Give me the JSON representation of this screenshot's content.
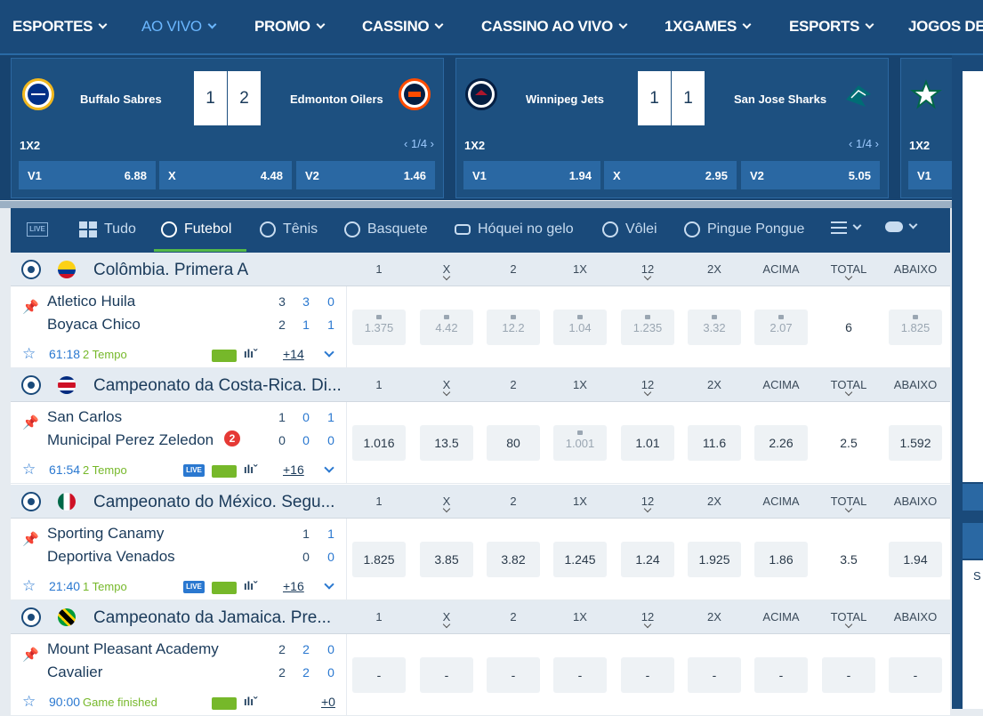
{
  "nav": [
    "ESPORTES",
    "AO VIVO",
    "PROMO",
    "CASSINO",
    "CASSINO AO VIVO",
    "1XGAMES",
    "ESPORTS",
    "JOGOS DE"
  ],
  "cards": [
    {
      "home": "Buffalo Sabres",
      "away": "Edmonton Oilers",
      "s1": "1",
      "s2": "2",
      "market": "1X2",
      "pager": "‹ 1/4 ›",
      "odds": [
        {
          "l": "V1",
          "v": "6.88"
        },
        {
          "l": "X",
          "v": "4.48"
        },
        {
          "l": "V2",
          "v": "1.46"
        }
      ]
    },
    {
      "home": "Winnipeg Jets",
      "away": "San Jose Sharks",
      "s1": "1",
      "s2": "1",
      "market": "1X2",
      "pager": "‹ 1/4 ›",
      "odds": [
        {
          "l": "V1",
          "v": "1.94"
        },
        {
          "l": "X",
          "v": "2.95"
        },
        {
          "l": "V2",
          "v": "5.05"
        }
      ]
    },
    {
      "market": "1X2",
      "odds": [
        {
          "l": "V1"
        }
      ]
    }
  ],
  "sports": [
    {
      "label": "Tudo"
    },
    {
      "label": "Futebol"
    },
    {
      "label": "Tênis"
    },
    {
      "label": "Basquete"
    },
    {
      "label": "Hóquei no gelo"
    },
    {
      "label": "Vôlei"
    },
    {
      "label": "Pingue Pongue"
    }
  ],
  "live_badge": "LIVE",
  "columns": [
    "1",
    "X",
    "2",
    "1X",
    "12",
    "2X",
    "ACIMA",
    "TOTAL",
    "ABAIXO"
  ],
  "leagues": [
    {
      "title": "Colômbia. Primera A",
      "match": {
        "home": "Atletico Huila",
        "away": "Boyaca Chico",
        "hs": [
          "3",
          "3",
          "0"
        ],
        "as": [
          "2",
          "1",
          "1"
        ],
        "time": "61:18",
        "period": "2 Tempo",
        "more": "+14",
        "odds": [
          "1.375",
          "4.42",
          "12.2",
          "1.04",
          "1.235",
          "3.32",
          "2.07",
          "6",
          "1.825"
        ]
      }
    },
    {
      "title": "Campeonato da Costa-Rica. Di...",
      "match": {
        "home": "San Carlos",
        "away": "Municipal Perez Zeledon",
        "badge": "2",
        "hs": [
          "1",
          "0",
          "1"
        ],
        "as": [
          "0",
          "0",
          "0"
        ],
        "time": "61:54",
        "period": "2 Tempo",
        "more": "+16",
        "odds": [
          "1.016",
          "13.5",
          "80",
          "1.001",
          "1.01",
          "11.6",
          "2.26",
          "2.5",
          "1.592"
        ]
      }
    },
    {
      "title": "Campeonato do México. Segu...",
      "match": {
        "home": "Sporting Canamy",
        "away": "Deportiva Venados",
        "hs": [
          "1",
          "1"
        ],
        "as": [
          "0",
          "0"
        ],
        "time": "21:40",
        "period": "1 Tempo",
        "more": "+16",
        "odds": [
          "1.825",
          "3.85",
          "3.82",
          "1.245",
          "1.24",
          "1.925",
          "1.86",
          "3.5",
          "1.94"
        ]
      }
    },
    {
      "title": "Campeonato da Jamaica. Pre...",
      "match": {
        "home": "Mount Pleasant Academy",
        "away": "Cavalier",
        "hs": [
          "2",
          "2",
          "0"
        ],
        "as": [
          "2",
          "2",
          "0"
        ],
        "time": "90:00",
        "period": "Game finished",
        "more": "+0",
        "odds": [
          "-",
          "-",
          "-",
          "-",
          "-",
          "-",
          "-",
          "-",
          "-"
        ]
      }
    }
  ],
  "right_panel_text": "S"
}
